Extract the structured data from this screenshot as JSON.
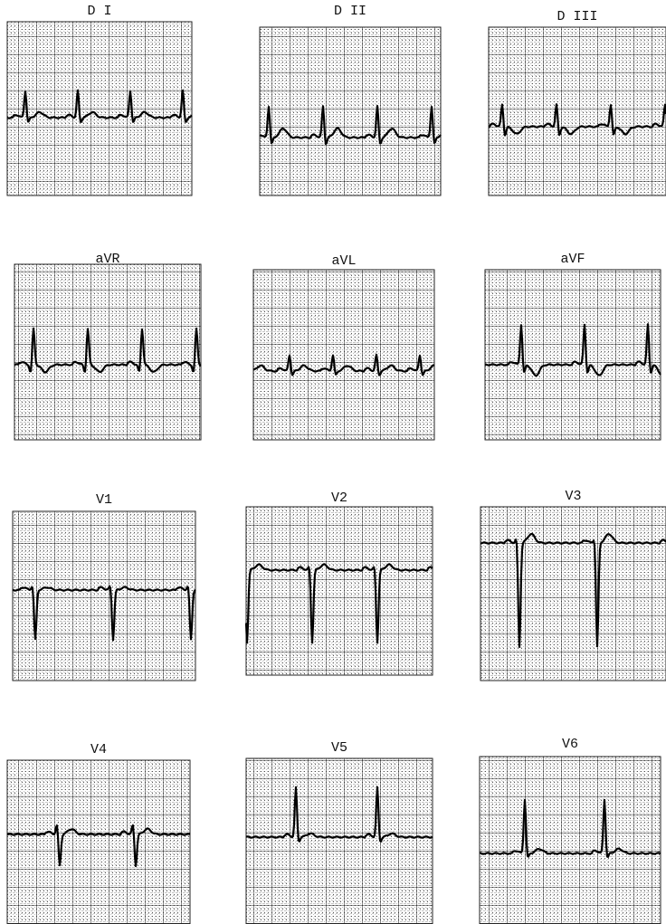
{
  "leads": [
    {
      "label": "D I"
    },
    {
      "label": "D II"
    },
    {
      "label": "D III"
    },
    {
      "label": "aVR"
    },
    {
      "label": "aVL"
    },
    {
      "label": "aVF"
    },
    {
      "label": "V1"
    },
    {
      "label": "V2"
    },
    {
      "label": "V3"
    },
    {
      "label": "V4"
    },
    {
      "label": "V5"
    },
    {
      "label": "V6"
    }
  ]
}
